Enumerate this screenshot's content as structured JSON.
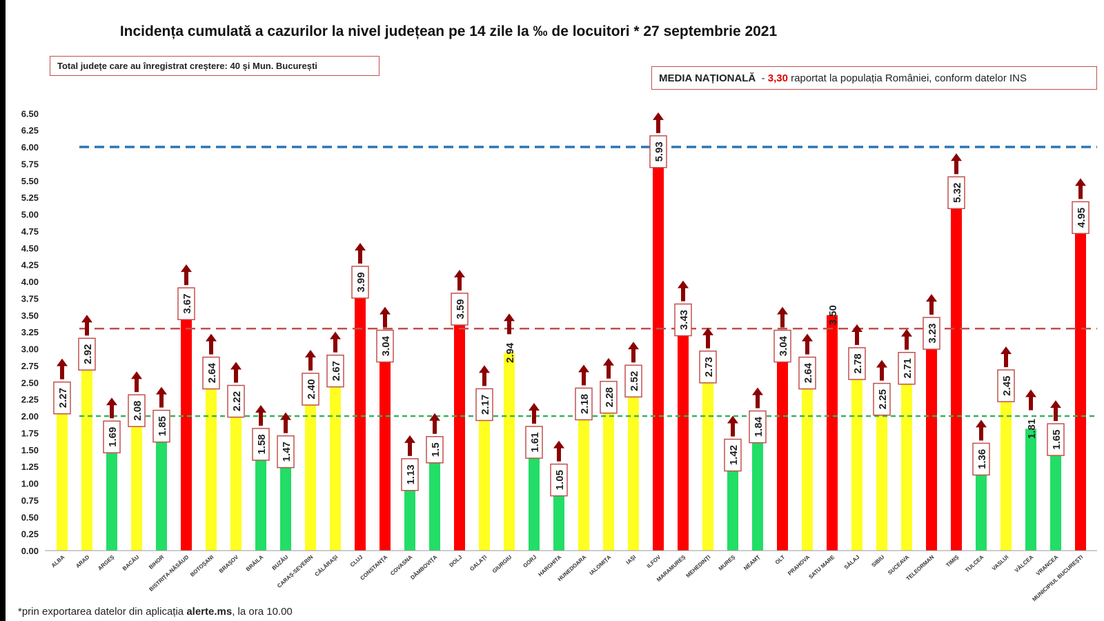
{
  "chart_data": {
    "type": "bar",
    "title": "Incidența cumulată a cazurilor la nivel județean pe 14 zile la ‰ de locuitori * 27 septembrie 2021",
    "ylim": [
      0,
      6.5
    ],
    "yticks": [
      "0.00",
      "0.25",
      "0.50",
      "0.75",
      "1.00",
      "1.25",
      "1.50",
      "1.75",
      "2.00",
      "2.25",
      "2.50",
      "2.75",
      "3.00",
      "3.25",
      "3.50",
      "3.75",
      "4.00",
      "4.25",
      "4.50",
      "4.75",
      "5.00",
      "5.25",
      "5.50",
      "5.75",
      "6.00",
      "6.25",
      "6.50"
    ],
    "reference_lines": [
      {
        "value": 6.0,
        "color": "#2e75b6",
        "style": "dashed"
      },
      {
        "value": 3.3,
        "color": "#c0504d",
        "style": "dashed"
      },
      {
        "value": 2.0,
        "color": "#33b35a",
        "style": "dashed"
      }
    ],
    "colors": {
      "green": "#22dd66",
      "yellow": "#ffff22",
      "red": "#ff0000",
      "arrow": "#8b0000",
      "label_border": "#c0504d"
    },
    "categories": [
      "ALBA",
      "ARAD",
      "ARGEȘ",
      "BACĂU",
      "BIHOR",
      "BISTRIȚA-NĂSĂUD",
      "BOTOȘANI",
      "BRAȘOV",
      "BRĂILA",
      "BUZĂU",
      "CARAȘ-SEVERIN",
      "CĂLĂRAȘI",
      "CLUJ",
      "CONSTANȚA",
      "COVASNA",
      "DÂMBOVIȚA",
      "DOLJ",
      "GALAȚI",
      "GIURGIU",
      "GORJ",
      "HARGHITA",
      "HUNEDOARA",
      "IALOMIȚA",
      "IAȘI",
      "ILFOV",
      "MARAMUREȘ",
      "MEHEDINȚI",
      "MUREȘ",
      "NEAMȚ",
      "OLT",
      "PRAHOVA",
      "SATU MARE",
      "SĂLAJ",
      "SIBIU",
      "SUCEAVA",
      "TELEORMAN",
      "TIMIȘ",
      "TULCEA",
      "VASLUI",
      "VÂLCEA",
      "VRANCEA",
      "MUNICIPIUL BUCUREȘTI"
    ],
    "values": [
      2.27,
      2.92,
      1.69,
      2.08,
      1.85,
      3.67,
      2.64,
      2.22,
      1.58,
      1.47,
      2.4,
      2.67,
      3.99,
      3.04,
      1.13,
      1.5,
      3.59,
      2.17,
      2.94,
      1.61,
      1.05,
      2.18,
      2.28,
      2.52,
      5.93,
      3.43,
      2.73,
      1.42,
      1.84,
      3.04,
      2.64,
      3.5,
      2.78,
      2.25,
      2.71,
      3.23,
      5.32,
      1.36,
      2.45,
      1.81,
      1.65,
      4.95
    ],
    "value_labels": [
      "2.27",
      "2.92",
      "1.69",
      "2.08",
      "1.85",
      "3.67",
      "2.64",
      "2.22",
      "1.58",
      "1.47",
      "2.40",
      "2.67",
      "3.99",
      "3.04",
      "1.13",
      "1.5",
      "3.59",
      "2.17",
      "2.94",
      "1.61",
      "1.05",
      "2.18",
      "2.28",
      "2.52",
      "5.93",
      "3.43",
      "2.73",
      "1.42",
      "1.84",
      "3.04",
      "2.64",
      "3.50",
      "2.78",
      "2.25",
      "2.71",
      "3.23",
      "5.32",
      "1.36",
      "2.45",
      "1.81",
      "1.65",
      "4.95"
    ],
    "bar_colors": [
      "yellow",
      "yellow",
      "green",
      "yellow",
      "green",
      "red",
      "yellow",
      "yellow",
      "green",
      "green",
      "yellow",
      "yellow",
      "red",
      "red",
      "green",
      "green",
      "red",
      "yellow",
      "yellow",
      "green",
      "green",
      "yellow",
      "yellow",
      "yellow",
      "red",
      "red",
      "yellow",
      "green",
      "green",
      "red",
      "yellow",
      "red",
      "yellow",
      "yellow",
      "yellow",
      "red",
      "red",
      "green",
      "yellow",
      "green",
      "green",
      "red"
    ],
    "arrows": [
      true,
      true,
      true,
      true,
      true,
      true,
      true,
      true,
      true,
      true,
      true,
      true,
      true,
      true,
      true,
      true,
      true,
      true,
      true,
      true,
      true,
      true,
      true,
      true,
      true,
      true,
      true,
      true,
      true,
      true,
      true,
      false,
      true,
      true,
      true,
      true,
      true,
      true,
      true,
      true,
      true,
      true
    ],
    "labels_boxed": [
      true,
      true,
      true,
      true,
      true,
      true,
      true,
      true,
      true,
      true,
      true,
      true,
      true,
      true,
      true,
      true,
      true,
      true,
      false,
      true,
      true,
      true,
      true,
      true,
      true,
      true,
      true,
      true,
      true,
      true,
      true,
      false,
      true,
      true,
      true,
      true,
      true,
      true,
      true,
      false,
      true,
      true
    ]
  },
  "total_box": {
    "text": "Total județe care au înregistrat creștere:  40 și Mun. București"
  },
  "media_box": {
    "label": "MEDIA NAȚIONALĂ",
    "sep": "  - ",
    "value": "3,30",
    "rest": " raportat la populația României, conform datelor INS"
  },
  "footnote": {
    "prefix": "*prin exportarea datelor din aplicația ",
    "bold": "alerte.ms",
    "suffix": ", la ora 10.00"
  }
}
